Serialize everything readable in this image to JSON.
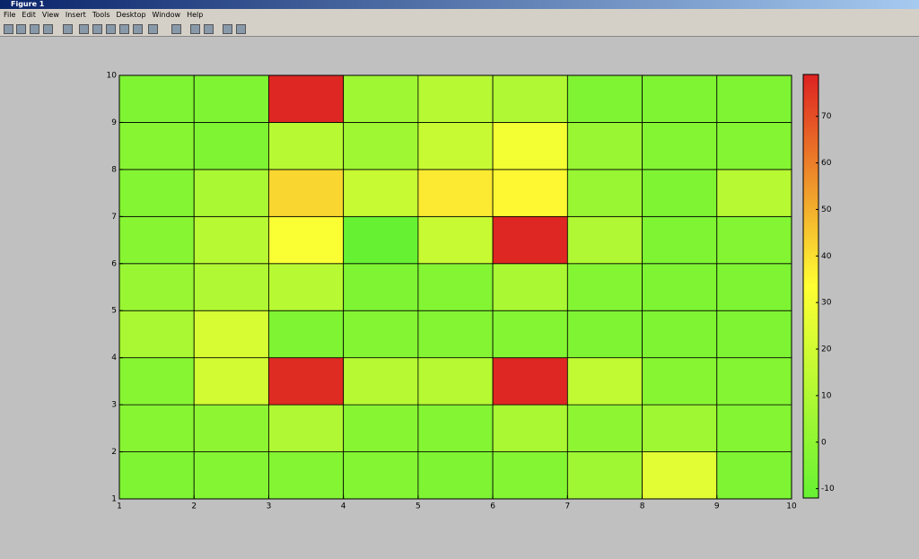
{
  "window": {
    "title": "Figure 1",
    "menu": [
      "File",
      "Edit",
      "View",
      "Insert",
      "Tools",
      "Desktop",
      "Window",
      "Help"
    ]
  },
  "chart_data": {
    "type": "heatmap",
    "x": [
      1,
      2,
      3,
      4,
      5,
      6,
      7,
      8,
      9,
      10
    ],
    "y": [
      1,
      2,
      3,
      4,
      5,
      6,
      7,
      8,
      9,
      10
    ],
    "values": [
      [
        -5,
        -3,
        -3,
        -3,
        -5,
        -3,
        5,
        25,
        -5
      ],
      [
        -2,
        0,
        10,
        -2,
        -3,
        8,
        0,
        5,
        -3
      ],
      [
        -2,
        20,
        77,
        12,
        12,
        78,
        15,
        -2,
        -3
      ],
      [
        8,
        22,
        -5,
        -3,
        -3,
        -3,
        -5,
        -5,
        -5
      ],
      [
        3,
        10,
        12,
        -5,
        -3,
        8,
        -3,
        -5,
        -5
      ],
      [
        -2,
        12,
        32,
        -12,
        17,
        78,
        10,
        -5,
        -3
      ],
      [
        -3,
        8,
        42,
        17,
        38,
        35,
        3,
        -5,
        12
      ],
      [
        -2,
        -5,
        12,
        5,
        17,
        30,
        3,
        -3,
        -3
      ],
      [
        -5,
        -5,
        78,
        5,
        12,
        10,
        -5,
        -5,
        -5
      ]
    ],
    "xlim": [
      1,
      10
    ],
    "ylim": [
      1,
      10
    ],
    "xticks": [
      1,
      2,
      3,
      4,
      5,
      6,
      7,
      8,
      9,
      10
    ],
    "yticks": [
      1,
      2,
      3,
      4,
      5,
      6,
      7,
      8,
      9,
      10
    ],
    "clim": [
      -12,
      79
    ],
    "cticks": [
      -10,
      0,
      10,
      20,
      30,
      40,
      50,
      60,
      70
    ],
    "colormap": [
      "#66f233",
      "#ffff33",
      "#dd2222"
    ]
  }
}
